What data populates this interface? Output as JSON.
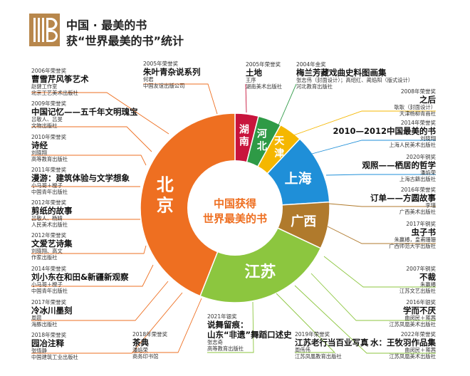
{
  "header": {
    "title_line1": "中国 · 最美的书",
    "title_line2": "获“世界最美的书”统计"
  },
  "chart_data": {
    "type": "pie",
    "center_label_line1": "中国获得",
    "center_label_line2": "世界最美的书",
    "slices": [
      {
        "name": "湖南",
        "value": 1,
        "color": "#c8143c"
      },
      {
        "name": "河北",
        "value": 1,
        "color": "#2e9a46"
      },
      {
        "name": "天津",
        "value": 1,
        "color": "#f5b700"
      },
      {
        "name": "上海",
        "value": 3,
        "color": "#1f8fd8"
      },
      {
        "name": "广西",
        "value": 2,
        "color": "#b07a2c"
      },
      {
        "name": "江苏",
        "value": 6,
        "color": "#8cc63f"
      },
      {
        "name": "北京",
        "value": 11,
        "color": "#ee6f21"
      }
    ],
    "annotations": [
      {
        "award": "2006年荣誉奖",
        "title": "曹雪芹风筝艺术",
        "meta": [
          "赵健工作室",
          "北京工艺美术出版社"
        ]
      },
      {
        "award": "2005年荣誉奖",
        "title": "朱叶青杂说系列",
        "meta": [
          "何君",
          "中国友谊出版公司"
        ]
      },
      {
        "award": "2005年荣誉奖",
        "title": "土地",
        "meta": [
          "王序",
          "湖南美术出版社"
        ]
      },
      {
        "award": "2004年金奖",
        "title": "梅兰芳藏戏曲史料图画集",
        "meta": [
          "张志伟（封面设计）；高绍红、蔺焰阳（版式设计）",
          "河北教育出版社"
        ]
      },
      {
        "award": "2009年荣誉奖",
        "title": "中国记忆——五千年文明瑰宝",
        "meta": [
          "吕敬人、吕旻",
          "文物出版社"
        ]
      },
      {
        "award": "2010年荣誉奖",
        "title": "诗经",
        "meta": [
          "刘晓翔",
          "高等教育出版社"
        ]
      },
      {
        "award": "2011年荣誉奖",
        "title": "漫游：建筑体验与文学想象",
        "meta": [
          "小马哥＋橙子",
          "中国青年出版社"
        ]
      },
      {
        "award": "2012年荣誉奖",
        "title": "剪纸的故事",
        "meta": [
          "吕敬人、杨婧",
          "人民美术出版社"
        ]
      },
      {
        "award": "2012年荣誉奖",
        "title": "文爱艺诗集",
        "meta": [
          "刘晓翔、高文",
          "作家出版社"
        ]
      },
      {
        "award": "2014年荣誉奖",
        "title": "刘小东在和田&新疆新观察",
        "meta": [
          "小马哥＋橙子",
          "中国青年出版社"
        ]
      },
      {
        "award": "2017年荣誉奖",
        "title": "冷冰川墨刻",
        "meta": [
          "周晨",
          "海豚出版社"
        ]
      },
      {
        "award": "2018年荣誉奖",
        "title": "园冶注释",
        "meta": [
          "张悟静",
          "中国建筑工业出版社"
        ]
      },
      {
        "award": "2018年荣誉奖",
        "title": "茶典",
        "meta": [
          "潘焰荣",
          "商务印书馆"
        ]
      },
      {
        "award": "2021年银奖",
        "title": "说舞留痕：",
        "title2": "山东“非遗”舞蹈口述史",
        "meta": [
          "张志奇",
          "高等教育出版社"
        ]
      },
      {
        "award": "2019年荣誉奖",
        "title": "江苏老行当百业写真",
        "meta": [
          "周伟伟",
          "江苏凤凰教育出版社"
        ]
      },
      {
        "award": "2022年荣誉奖",
        "title": "水：王牧羽作品集",
        "meta": [
          "曲闵民＋蒋茜",
          "江苏凤凰美术出版社"
        ]
      },
      {
        "award": "2016年银奖",
        "title": "学而不厌",
        "meta": [
          "曲闵民＋蒋茜",
          "江苏凤凰美术出版社"
        ]
      },
      {
        "award": "2007年铜奖",
        "title": "不裁",
        "meta": [
          "朱赢椿",
          "江苏文艺出版社"
        ]
      },
      {
        "award": "2017年铜奖",
        "title": "虫子书",
        "meta": [
          "朱赢椿，皇甫珊珊",
          "广西师范大学出版社"
        ]
      },
      {
        "award": "2016年荣誉奖",
        "title": "订单——方圆故事",
        "meta": [
          "李瑾",
          "广西美术出版社"
        ]
      },
      {
        "award": "2020年铜奖",
        "title": "观照——栖居的哲学",
        "meta": [
          "潘焰荣",
          "上海古籍出版社"
        ]
      },
      {
        "award": "2014年荣誉奖",
        "title": "2010—2012中国最美的书",
        "meta": [
          "刘晓翔",
          "上海人民美术出版社"
        ]
      },
      {
        "award": "2008年荣誉奖",
        "title": "之后",
        "meta": [
          "耿耿（封面设计）",
          "天津杨柳青画社"
        ]
      }
    ]
  }
}
